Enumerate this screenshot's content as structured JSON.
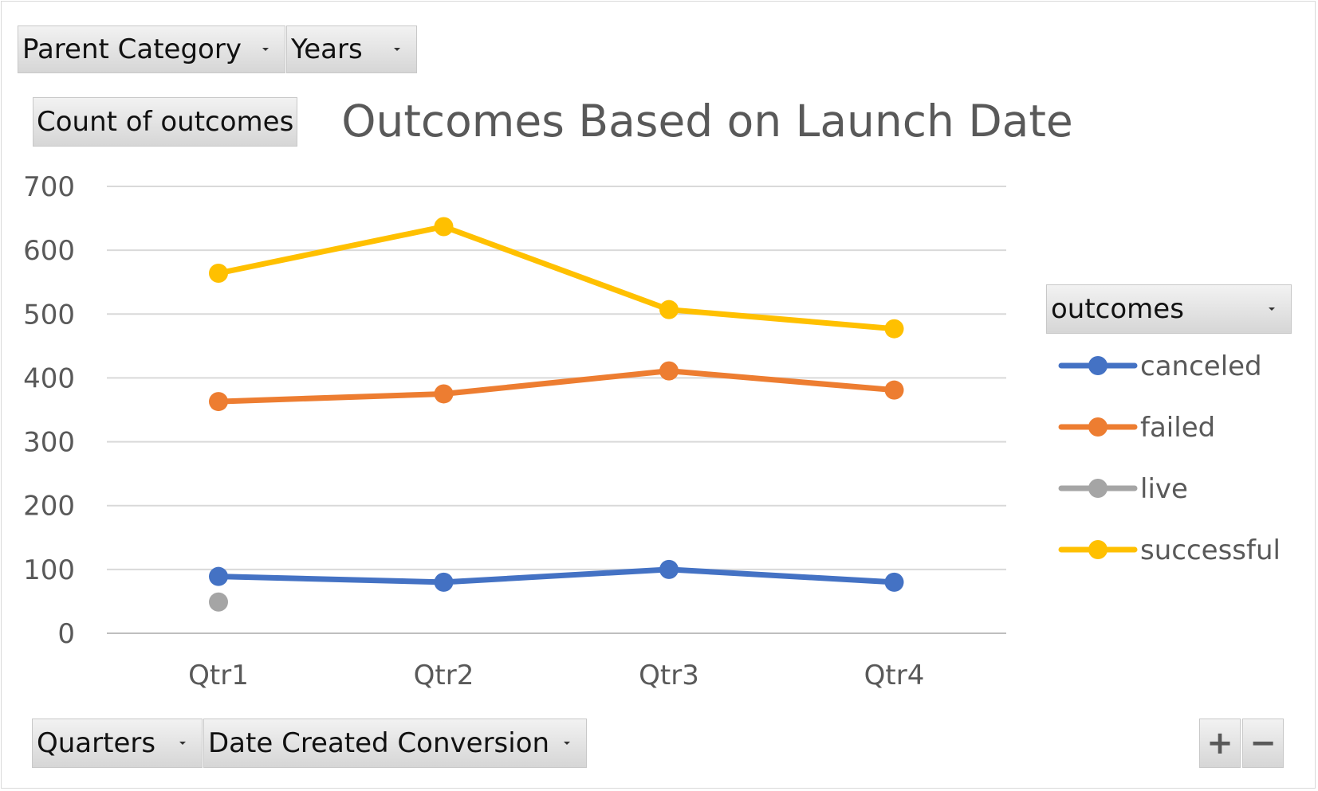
{
  "filters": {
    "parent_category": "Parent Category",
    "years": "Years",
    "quarters": "Quarters",
    "date_created_conversion": "Date Created Conversion"
  },
  "value_field": "Count of outcomes",
  "legend_field": "outcomes",
  "zoom": {
    "expand": "+",
    "collapse": "−"
  },
  "icons": {
    "dropdown": "dropdown-arrow-icon",
    "expand": "plus-icon",
    "collapse": "minus-icon"
  },
  "chart_data": {
    "type": "line",
    "title": "Outcomes Based on Launch Date",
    "xlabel": "",
    "ylabel": "",
    "categories": [
      "Qtr1",
      "Qtr2",
      "Qtr3",
      "Qtr4"
    ],
    "ylim": [
      0,
      700
    ],
    "yticks": [
      0,
      100,
      200,
      300,
      400,
      500,
      600,
      700
    ],
    "grid": true,
    "legend_position": "right",
    "series": [
      {
        "name": "canceled",
        "color": "#4472C4",
        "values": [
          89,
          80,
          100,
          80
        ]
      },
      {
        "name": "failed",
        "color": "#ED7D31",
        "values": [
          363,
          375,
          411,
          381
        ]
      },
      {
        "name": "live",
        "color": "#A5A5A5",
        "values": [
          49,
          null,
          null,
          null
        ]
      },
      {
        "name": "successful",
        "color": "#FFC000",
        "values": [
          564,
          637,
          507,
          477
        ]
      }
    ]
  }
}
